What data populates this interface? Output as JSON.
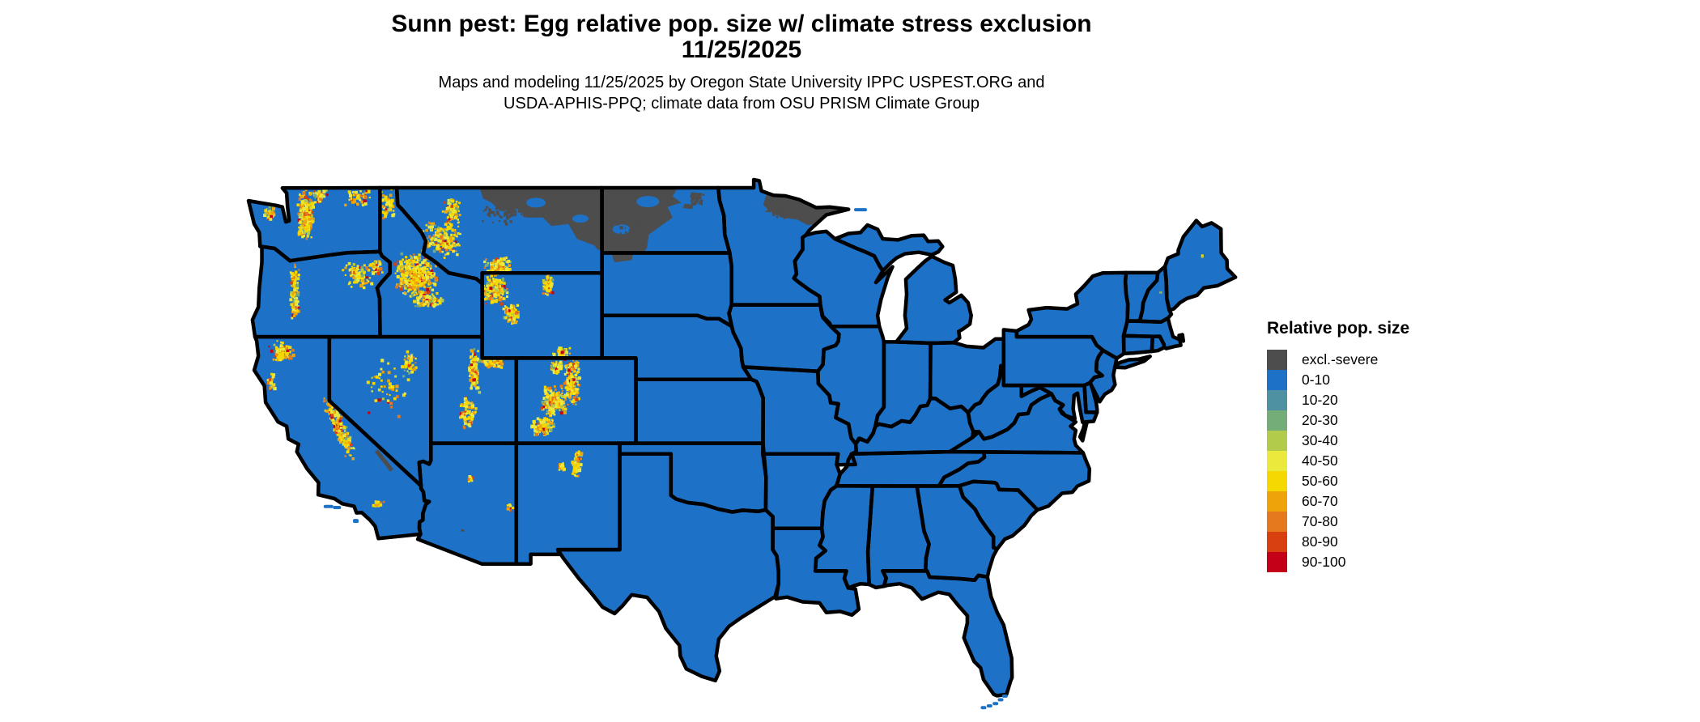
{
  "header": {
    "title_line1": "Sunn pest: Egg relative pop. size w/ climate stress exclusion",
    "title_line2": "11/25/2025",
    "subtitle_line1": "Maps and modeling 11/25/2025 by Oregon State University IPPC USPEST.ORG and",
    "subtitle_line2": "USDA-APHIS-PPQ; climate data from OSU PRISM Climate Group"
  },
  "legend": {
    "title": "Relative pop. size",
    "items": [
      {
        "label": "excl.-severe",
        "color": "#4D4D4D"
      },
      {
        "label": "0-10",
        "color": "#1D72C8"
      },
      {
        "label": "10-20",
        "color": "#4E91A3"
      },
      {
        "label": "20-30",
        "color": "#74AD78"
      },
      {
        "label": "30-40",
        "color": "#B3CB4A"
      },
      {
        "label": "40-50",
        "color": "#EBE93C"
      },
      {
        "label": "50-60",
        "color": "#F5D800"
      },
      {
        "label": "60-70",
        "color": "#EFA30A"
      },
      {
        "label": "70-80",
        "color": "#E5791D"
      },
      {
        "label": "80-90",
        "color": "#D8400F"
      },
      {
        "label": "90-100",
        "color": "#C40019"
      }
    ]
  },
  "map": {
    "type": "choropleth",
    "region": "Contiguous United States",
    "date": "11/25/2025",
    "base_class": "0-10",
    "border_color": "#000000",
    "water_color": "#ffffff",
    "observations": [
      {
        "area": "Most of the contiguous United States",
        "class": "0-10"
      },
      {
        "area": "Northern Montana Hi-Line and western/northern North Dakota",
        "class": "excl.-severe"
      },
      {
        "area": "Northeastern Minnesota (Arrowhead region)",
        "class": "excl.-severe"
      },
      {
        "area": "Small patches: NW South Dakota, Devils Lake ND area, Death Valley CA, SW Arizona",
        "class": "excl.-severe"
      },
      {
        "area": "Western mountain ranges: Cascades, Olympics, Blue Mtns, Idaho Rockies, W Montana, Yellowstone, Wind River, Bighorn, Wasatch, Uinta, Colorado Rockies, San Juan, Sangre de Cristo, Sierra Nevada, Klamath, NE Nevada, AZ peaks",
        "class": "scattered 30-100 pixels (mostly 40-70)"
      },
      {
        "area": "Tiny specks in Maine and New Hampshire mountains",
        "class": "50-60"
      }
    ]
  }
}
